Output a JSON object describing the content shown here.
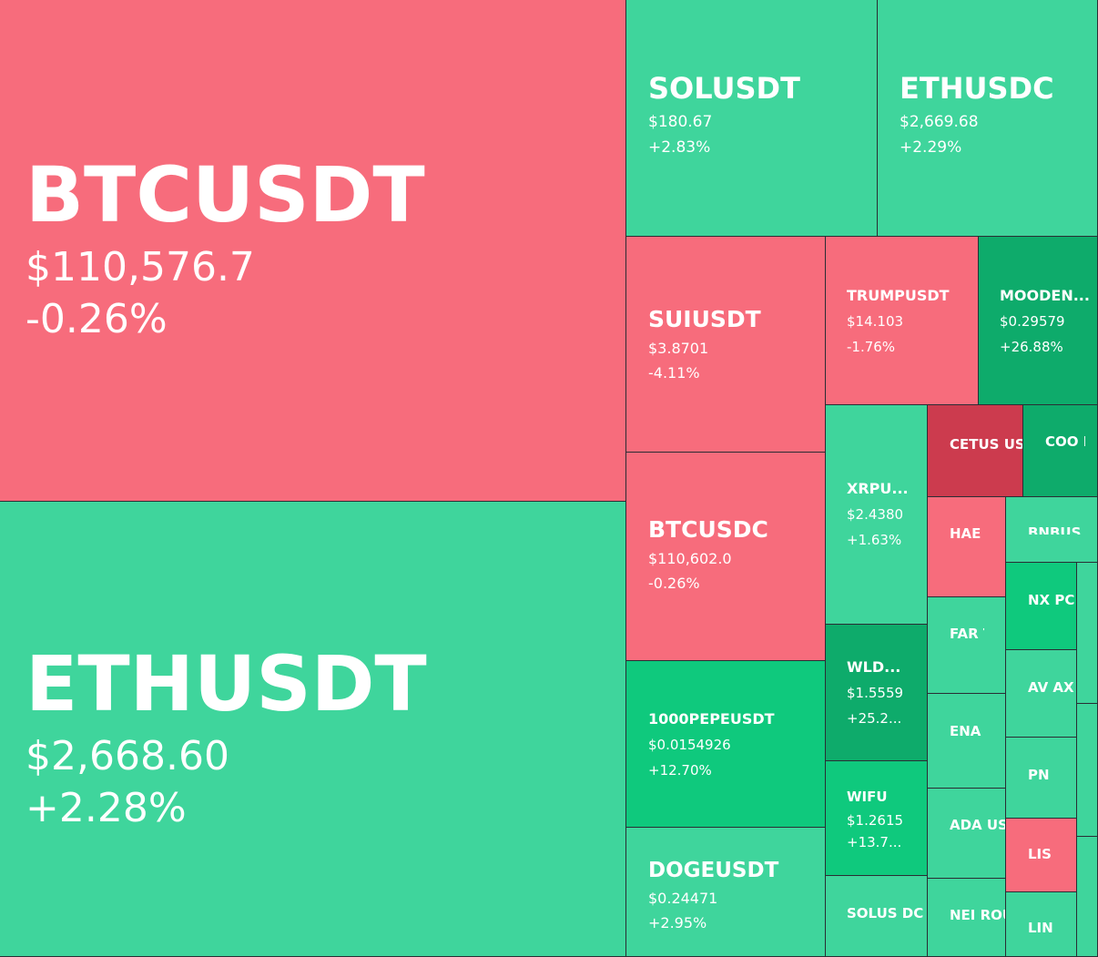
{
  "colors": {
    "up": "#3fd59c",
    "up_strong": "#0fc97d",
    "up_stronger": "#0eab6b",
    "down": "#f76c7c",
    "down_strong": "#cc3b4e",
    "border": "#2a2d34"
  },
  "tiles": {
    "btcusdt": {
      "symbol": "BTCUSDT",
      "price": "$110,576.7",
      "change": "-0.26%"
    },
    "ethusdt": {
      "symbol": "ETHUSDT",
      "price": "$2,668.60",
      "change": "+2.28%"
    },
    "solusdt": {
      "symbol": "SOLUSDT",
      "price": "$180.67",
      "change": "+2.83%"
    },
    "ethusdc": {
      "symbol": "ETHUSDC",
      "price": "$2,669.68",
      "change": "+2.29%"
    },
    "suiusdt": {
      "symbol": "SUIUSDT",
      "price": "$3.8701",
      "change": "-4.11%"
    },
    "trumpusdt": {
      "symbol": "TRUMPUSDT",
      "price": "$14.103",
      "change": "-1.76%"
    },
    "moodeng": {
      "symbol": "MOODEN...",
      "price": "$0.29579",
      "change": "+26.88%"
    },
    "btcusdc": {
      "symbol": "BTCUSDC",
      "price": "$110,602.0",
      "change": "-0.26%"
    },
    "xrpusdt": {
      "symbol": "XRPU...",
      "price": "$2.4380",
      "change": "+1.63%"
    },
    "cetusdt": {
      "symbol": "CETUS USDT"
    },
    "cookie": {
      "symbol": "COO KIEU"
    },
    "haedal": {
      "symbol": "HAE DAL USD"
    },
    "bnbusdt": {
      "symbol": "BNBUS"
    },
    "pepe": {
      "symbol": "1000PEPEUSDT",
      "price": "$0.0154926",
      "change": "+12.70%"
    },
    "wldusdt": {
      "symbol": "WLD...",
      "price": "$1.5559",
      "change": "+25.2..."
    },
    "fartcoin": {
      "symbol": "FAR TCO INU"
    },
    "nxpc": {
      "symbol": "NX PC"
    },
    "avax": {
      "symbol": "AV AX"
    },
    "enausdt": {
      "symbol": "ENA USD T"
    },
    "pnut": {
      "symbol": "PN UT"
    },
    "wifusdt": {
      "symbol": "WIFU",
      "price": "$1.2615",
      "change": "+13.7..."
    },
    "adausdt": {
      "symbol": "ADA USD"
    },
    "lis": {
      "symbol": "LIS"
    },
    "dogeusdt": {
      "symbol": "DOGEUSDT",
      "price": "$0.24471",
      "change": "+2.95%"
    },
    "solusdc": {
      "symbol": "SOLUS DC"
    },
    "neiro": {
      "symbol": "NEI ROU"
    },
    "lin": {
      "symbol": "LIN"
    }
  }
}
